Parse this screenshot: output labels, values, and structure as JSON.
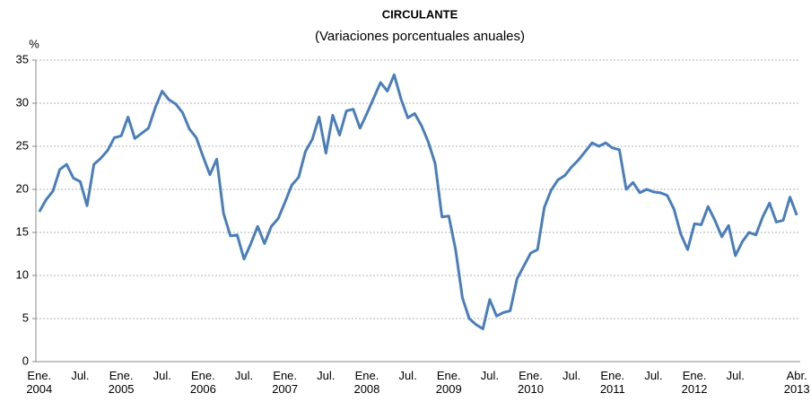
{
  "chart_data": {
    "type": "line",
    "title": "CIRCULANTE",
    "subtitle": "(Variaciones porcentuales anuales)",
    "y_label": "%",
    "categories": [
      "Ene.\n2004",
      null,
      null,
      null,
      null,
      null,
      "Jul.",
      null,
      null,
      null,
      null,
      null,
      "Ene.\n2005",
      null,
      null,
      null,
      null,
      null,
      "Jul.",
      null,
      null,
      null,
      null,
      null,
      "Ene.\n2006",
      null,
      null,
      null,
      null,
      null,
      "Jul.",
      null,
      null,
      null,
      null,
      null,
      "Ene.\n2007",
      null,
      null,
      null,
      null,
      null,
      "Jul.",
      null,
      null,
      null,
      null,
      null,
      "Ene.\n2008",
      null,
      null,
      null,
      null,
      null,
      "Jul.",
      null,
      null,
      null,
      null,
      null,
      "Ene.\n2009",
      null,
      null,
      null,
      null,
      null,
      "Jul.",
      null,
      null,
      null,
      null,
      null,
      "Ene.\n2010",
      null,
      null,
      null,
      null,
      null,
      "Jul.",
      null,
      null,
      null,
      null,
      null,
      "Ene.\n2011",
      null,
      null,
      null,
      null,
      null,
      "Jul.",
      null,
      null,
      null,
      null,
      null,
      "Ene.\n2012",
      null,
      null,
      null,
      null,
      null,
      "Jul.",
      null,
      null,
      null,
      null,
      null,
      null,
      null,
      null,
      "Abr.\n2013"
    ],
    "values": [
      17.4,
      18.8,
      19.8,
      22.3,
      22.9,
      21.3,
      20.9,
      18.1,
      22.9,
      23.6,
      24.5,
      26.0,
      26.2,
      28.4,
      25.9,
      26.5,
      27.1,
      29.5,
      31.4,
      30.4,
      29.9,
      28.9,
      27.0,
      26.0,
      23.8,
      21.7,
      23.5,
      17.2,
      14.6,
      14.7,
      11.9,
      13.7,
      15.7,
      13.7,
      15.7,
      16.6,
      18.5,
      20.5,
      21.4,
      24.4,
      25.8,
      28.4,
      24.2,
      28.6,
      26.3,
      29.1,
      29.3,
      27.1,
      28.8,
      30.6,
      32.4,
      31.4,
      33.3,
      30.5,
      28.3,
      28.8,
      27.4,
      25.5,
      23.0,
      16.8,
      16.9,
      13.0,
      7.4,
      5.0,
      4.3,
      3.8,
      7.2,
      5.3,
      5.7,
      5.9,
      9.6,
      11.1,
      12.6,
      13.0,
      17.9,
      19.9,
      21.1,
      21.6,
      22.6,
      23.4,
      24.4,
      25.4,
      25.0,
      25.4,
      24.8,
      24.6,
      20.0,
      20.8,
      19.6,
      20.0,
      19.7,
      19.6,
      19.3,
      17.7,
      14.8,
      13.0,
      16.0,
      15.9,
      18.0,
      16.4,
      14.5,
      15.8,
      12.3,
      13.9,
      15.0,
      14.7,
      16.8,
      18.4,
      16.2,
      16.4,
      19.1,
      17.0
    ],
    "color": "#4a7ebb",
    "ylim": [
      0,
      35
    ],
    "yticks": [
      0,
      5,
      10,
      15,
      20,
      25,
      30,
      35
    ],
    "grid": true
  }
}
